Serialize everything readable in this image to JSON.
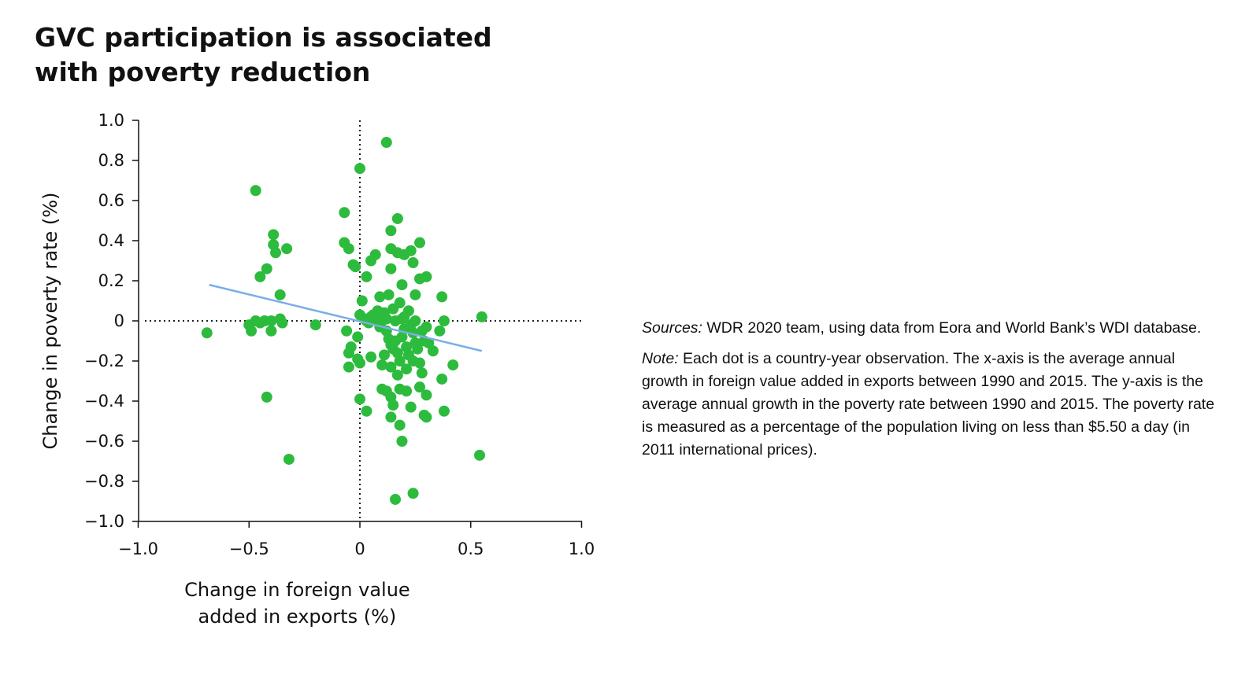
{
  "title": [
    "GVC participation is associated",
    "with poverty reduction"
  ],
  "notes": {
    "sources_label": "Sources:",
    "sources_text": " WDR 2020 team, using data from Eora and World Bank’s WDI database.",
    "note_label": "Note:",
    "note_text": " Each dot is a country-year observation. The x-axis is the average annual growth in foreign value added in exports between 1990 and 2015. The y-axis is the average annual growth in the poverty rate between 1990 and 2015. The poverty rate is measured as a percentage of the population living on less than $5.50 a day (in 2011 international prices)."
  },
  "chart_data": {
    "type": "scatter",
    "title": "GVC participation is associated with poverty reduction",
    "xlabel": [
      "Change in foreign value",
      "added in exports (%)"
    ],
    "ylabel": "Change in poverty rate (%)",
    "xlim": [
      -1.0,
      1.0
    ],
    "ylim": [
      -1.0,
      1.0
    ],
    "xticks": [
      -1.0,
      -0.5,
      0,
      0.5,
      1.0
    ],
    "xtick_labels": [
      "−1.0",
      "−0.5",
      "0",
      "0.5",
      "1.0"
    ],
    "yticks": [
      1.0,
      0.8,
      0.6,
      0.4,
      0.2,
      0,
      -0.2,
      -0.4,
      -0.6,
      -0.8,
      -1.0
    ],
    "ytick_labels": [
      "1.0",
      "0.8",
      "0.6",
      "0.4",
      "0.2",
      "0",
      "−0.2",
      "−0.4",
      "−0.6",
      "−0.8",
      "−1.0"
    ],
    "reference_lines": [
      "x = 0 (dotted)",
      "y = 0 (dotted)"
    ],
    "grid": false,
    "colors": {
      "points": "#2dbb3d",
      "trend": "#7aaee8",
      "axis": "#111111"
    },
    "points": [
      [
        -0.69,
        -0.06
      ],
      [
        -0.5,
        -0.02
      ],
      [
        -0.49,
        -0.05
      ],
      [
        -0.47,
        0.0
      ],
      [
        -0.45,
        -0.01
      ],
      [
        -0.43,
        0.0
      ],
      [
        -0.4,
        0.0
      ],
      [
        -0.4,
        -0.05
      ],
      [
        -0.36,
        0.01
      ],
      [
        -0.35,
        -0.01
      ],
      [
        -0.2,
        -0.02
      ],
      [
        -0.06,
        -0.05
      ],
      [
        -0.47,
        0.65
      ],
      [
        -0.45,
        0.22
      ],
      [
        -0.42,
        0.26
      ],
      [
        -0.39,
        0.38
      ],
      [
        -0.39,
        0.43
      ],
      [
        -0.38,
        0.34
      ],
      [
        -0.33,
        0.36
      ],
      [
        -0.36,
        0.13
      ],
      [
        -0.42,
        -0.38
      ],
      [
        -0.32,
        -0.69
      ],
      [
        -0.07,
        0.54
      ],
      [
        -0.07,
        0.39
      ],
      [
        -0.05,
        0.36
      ],
      [
        -0.03,
        0.28
      ],
      [
        -0.02,
        0.27
      ],
      [
        0.0,
        0.76
      ],
      [
        0.12,
        0.89
      ],
      [
        0.17,
        0.51
      ],
      [
        0.14,
        0.45
      ],
      [
        0.07,
        0.33
      ],
      [
        0.05,
        0.3
      ],
      [
        0.03,
        0.22
      ],
      [
        0.14,
        0.36
      ],
      [
        0.17,
        0.34
      ],
      [
        0.2,
        0.33
      ],
      [
        0.23,
        0.35
      ],
      [
        0.24,
        0.29
      ],
      [
        0.27,
        0.39
      ],
      [
        0.27,
        0.21
      ],
      [
        0.3,
        0.22
      ],
      [
        0.14,
        0.26
      ],
      [
        0.19,
        0.18
      ],
      [
        0.13,
        0.13
      ],
      [
        0.09,
        0.12
      ],
      [
        0.25,
        0.13
      ],
      [
        0.37,
        0.12
      ],
      [
        -0.04,
        -0.13
      ],
      [
        -0.05,
        -0.16
      ],
      [
        -0.05,
        -0.23
      ],
      [
        -0.01,
        -0.08
      ],
      [
        -0.01,
        -0.19
      ],
      [
        0.0,
        -0.21
      ],
      [
        0.05,
        -0.18
      ],
      [
        0.1,
        -0.22
      ],
      [
        0.0,
        -0.39
      ],
      [
        0.03,
        -0.45
      ],
      [
        0.01,
        0.1
      ],
      [
        0.0,
        0.03
      ],
      [
        0.02,
        0.01
      ],
      [
        0.03,
        0.0
      ],
      [
        0.04,
        -0.01
      ],
      [
        0.05,
        0.02
      ],
      [
        0.06,
        0.03
      ],
      [
        0.07,
        0.01
      ],
      [
        0.08,
        0.05
      ],
      [
        0.09,
        -0.03
      ],
      [
        0.1,
        0.0
      ],
      [
        0.11,
        0.04
      ],
      [
        0.12,
        -0.05
      ],
      [
        0.13,
        -0.09
      ],
      [
        0.14,
        -0.12
      ],
      [
        0.15,
        -0.14
      ],
      [
        0.16,
        -0.1
      ],
      [
        0.17,
        -0.16
      ],
      [
        0.18,
        -0.2
      ],
      [
        0.19,
        -0.08
      ],
      [
        0.2,
        -0.04
      ],
      [
        0.21,
        -0.13
      ],
      [
        0.22,
        -0.17
      ],
      [
        0.23,
        -0.02
      ],
      [
        0.24,
        -0.06
      ],
      [
        0.25,
        -0.11
      ],
      [
        0.26,
        -0.14
      ],
      [
        0.27,
        -0.21
      ],
      [
        0.28,
        -0.05
      ],
      [
        0.29,
        -0.1
      ],
      [
        0.3,
        -0.03
      ],
      [
        0.31,
        -0.11
      ],
      [
        0.33,
        -0.15
      ],
      [
        0.15,
        0.06
      ],
      [
        0.18,
        0.09
      ],
      [
        0.2,
        0.02
      ],
      [
        0.22,
        0.05
      ],
      [
        0.12,
        0.01
      ],
      [
        0.16,
        0.0
      ],
      [
        0.19,
        0.01
      ],
      [
        0.25,
        0.0
      ],
      [
        0.11,
        -0.17
      ],
      [
        0.14,
        -0.23
      ],
      [
        0.17,
        -0.27
      ],
      [
        0.21,
        -0.24
      ],
      [
        0.24,
        -0.2
      ],
      [
        0.28,
        -0.26
      ],
      [
        0.36,
        -0.05
      ],
      [
        0.37,
        -0.29
      ],
      [
        0.42,
        -0.22
      ],
      [
        0.38,
        0.0
      ],
      [
        0.1,
        -0.34
      ],
      [
        0.12,
        -0.35
      ],
      [
        0.14,
        -0.38
      ],
      [
        0.15,
        -0.42
      ],
      [
        0.18,
        -0.34
      ],
      [
        0.21,
        -0.35
      ],
      [
        0.23,
        -0.43
      ],
      [
        0.27,
        -0.33
      ],
      [
        0.3,
        -0.37
      ],
      [
        0.29,
        -0.47
      ],
      [
        0.3,
        -0.48
      ],
      [
        0.38,
        -0.45
      ],
      [
        0.14,
        -0.48
      ],
      [
        0.18,
        -0.52
      ],
      [
        0.19,
        -0.6
      ],
      [
        0.55,
        0.02
      ],
      [
        0.54,
        -0.67
      ],
      [
        0.16,
        -0.89
      ],
      [
        0.24,
        -0.86
      ]
    ],
    "trend_line": {
      "x": [
        -0.68,
        0.55
      ],
      "y": [
        0.18,
        -0.15
      ]
    }
  }
}
